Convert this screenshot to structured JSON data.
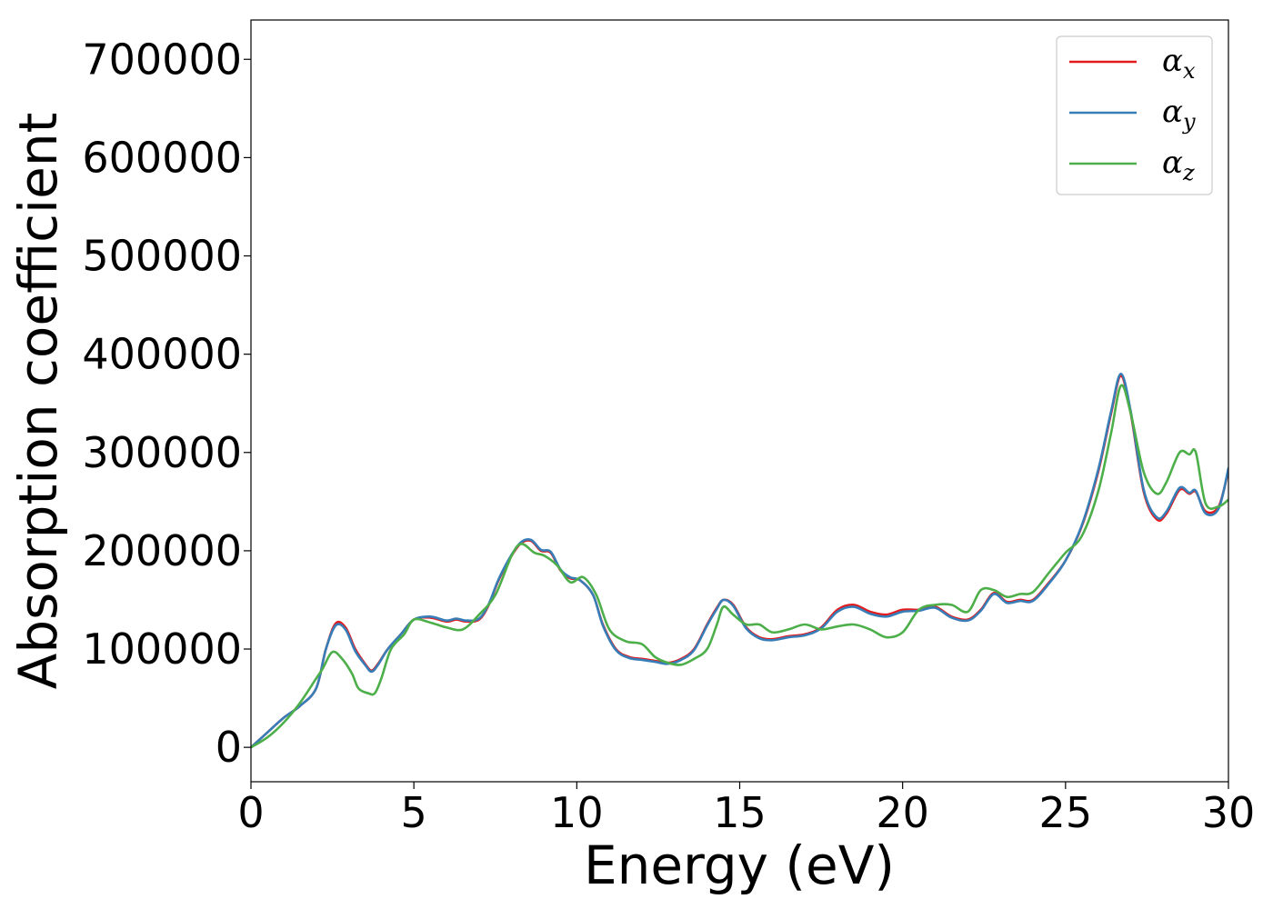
{
  "chart_data": {
    "type": "line",
    "title": "",
    "xlabel": "Energy (eV)",
    "ylabel": "Absorption coefficient",
    "xlim": [
      0,
      30
    ],
    "ylim": [
      -35000,
      740000
    ],
    "xticks": [
      0,
      5,
      10,
      15,
      20,
      25,
      30
    ],
    "xtick_labels": [
      "0",
      "5",
      "10",
      "15",
      "20",
      "25",
      "30"
    ],
    "yticks": [
      0,
      100000,
      200000,
      300000,
      400000,
      500000,
      600000,
      700000
    ],
    "ytick_labels": [
      "0",
      "100000",
      "200000",
      "300000",
      "400000",
      "500000",
      "600000",
      "700000"
    ],
    "grid": false,
    "legend_position": "top-right",
    "series": [
      {
        "name": "α_x",
        "legend_base": "α",
        "legend_sub": "x",
        "color": "#e41a1c",
        "x": [
          0,
          0.5,
          1,
          1.5,
          2,
          2.3,
          2.6,
          2.9,
          3.2,
          3.5,
          3.7,
          3.9,
          4.2,
          4.6,
          5,
          5.5,
          6,
          6.3,
          6.6,
          7,
          7.3,
          7.6,
          8,
          8.3,
          8.6,
          8.9,
          9.2,
          9.5,
          9.8,
          10.1,
          10.5,
          10.8,
          11.2,
          11.6,
          12,
          12.4,
          12.8,
          13.2,
          13.6,
          14,
          14.3,
          14.5,
          14.8,
          15.2,
          15.6,
          16,
          16.5,
          17,
          17.5,
          18,
          18.5,
          19,
          19.5,
          20,
          20.5,
          21,
          21.5,
          22,
          22.4,
          22.8,
          23.2,
          23.6,
          24,
          24.5,
          25,
          25.5,
          26,
          26.4,
          26.7,
          27,
          27.4,
          27.8,
          28.1,
          28.5,
          28.8,
          29,
          29.3,
          29.7,
          30
        ],
        "y": [
          0,
          15000,
          30000,
          42000,
          60000,
          100000,
          126000,
          122000,
          100000,
          85000,
          78000,
          85000,
          100000,
          115000,
          130000,
          132000,
          128000,
          130000,
          128000,
          130000,
          145000,
          170000,
          195000,
          208000,
          210000,
          200000,
          198000,
          180000,
          172000,
          170000,
          155000,
          125000,
          100000,
          92000,
          90000,
          88000,
          86000,
          90000,
          100000,
          125000,
          142000,
          150000,
          145000,
          122000,
          112000,
          110000,
          113000,
          115000,
          122000,
          140000,
          145000,
          138000,
          135000,
          140000,
          140000,
          143000,
          133000,
          130000,
          140000,
          157000,
          148000,
          150000,
          150000,
          168000,
          190000,
          225000,
          280000,
          340000,
          378000,
          340000,
          260000,
          232000,
          238000,
          262000,
          258000,
          260000,
          240000,
          245000,
          282000
        ]
      },
      {
        "name": "α_y",
        "legend_base": "α",
        "legend_sub": "y",
        "color": "#377eb8",
        "x": [
          0,
          0.5,
          1,
          1.5,
          2,
          2.3,
          2.6,
          2.9,
          3.2,
          3.5,
          3.7,
          3.9,
          4.2,
          4.6,
          5,
          5.5,
          6,
          6.3,
          6.6,
          7,
          7.3,
          7.6,
          8,
          8.3,
          8.6,
          8.9,
          9.2,
          9.5,
          9.8,
          10.1,
          10.5,
          10.8,
          11.2,
          11.6,
          12,
          12.4,
          12.8,
          13.2,
          13.6,
          14,
          14.3,
          14.5,
          14.8,
          15.2,
          15.6,
          16,
          16.5,
          17,
          17.5,
          18,
          18.5,
          19,
          19.5,
          20,
          20.5,
          21,
          21.5,
          22,
          22.4,
          22.8,
          23.2,
          23.6,
          24,
          24.5,
          25,
          25.5,
          26,
          26.4,
          26.7,
          27,
          27.4,
          27.8,
          28.1,
          28.5,
          28.8,
          29,
          29.3,
          29.7,
          30
        ],
        "y": [
          0,
          15000,
          30000,
          42000,
          60000,
          100000,
          124000,
          120000,
          98000,
          84000,
          77000,
          84000,
          100000,
          115000,
          130000,
          133000,
          129000,
          131000,
          129000,
          131000,
          146000,
          171000,
          196000,
          209000,
          211000,
          201000,
          199000,
          181000,
          173000,
          170000,
          155000,
          124000,
          99000,
          91000,
          89000,
          87000,
          85000,
          89000,
          99000,
          124000,
          141000,
          150000,
          144000,
          121000,
          111000,
          109000,
          112000,
          114000,
          121000,
          138000,
          143000,
          136000,
          133000,
          138000,
          139000,
          142000,
          132000,
          129000,
          139000,
          156000,
          147000,
          149000,
          149000,
          167000,
          190000,
          226000,
          282000,
          342000,
          380000,
          342000,
          262000,
          234000,
          240000,
          264000,
          259000,
          261000,
          238000,
          243000,
          284000
        ]
      },
      {
        "name": "α_z",
        "legend_base": "α",
        "legend_sub": "z",
        "color": "#4daf4a",
        "x": [
          0,
          0.5,
          1,
          1.5,
          2,
          2.2,
          2.5,
          2.8,
          3.1,
          3.3,
          3.6,
          3.8,
          4,
          4.3,
          4.7,
          5,
          5.5,
          6,
          6.5,
          7,
          7.5,
          8,
          8.3,
          8.7,
          9,
          9.4,
          9.8,
          10.2,
          10.6,
          11,
          11.5,
          12,
          12.4,
          12.8,
          13.2,
          13.6,
          14,
          14.3,
          14.5,
          14.8,
          15.2,
          15.6,
          16,
          16.5,
          17,
          17.5,
          18,
          18.5,
          19,
          19.5,
          20,
          20.5,
          21,
          21.5,
          22,
          22.4,
          22.8,
          23.2,
          23.6,
          24,
          24.5,
          25,
          25.5,
          26,
          26.4,
          26.7,
          27,
          27.4,
          27.8,
          28.1,
          28.5,
          28.8,
          29,
          29.3,
          29.7,
          30
        ],
        "y": [
          0,
          10000,
          25000,
          45000,
          70000,
          80000,
          97000,
          90000,
          75000,
          60000,
          55000,
          55000,
          70000,
          100000,
          115000,
          130000,
          127000,
          122000,
          120000,
          135000,
          155000,
          195000,
          207000,
          198000,
          195000,
          185000,
          168000,
          173000,
          155000,
          120000,
          108000,
          105000,
          92000,
          86000,
          84000,
          90000,
          100000,
          125000,
          143000,
          135000,
          125000,
          125000,
          117000,
          120000,
          125000,
          120000,
          123000,
          125000,
          120000,
          112000,
          117000,
          140000,
          145000,
          145000,
          138000,
          160000,
          160000,
          153000,
          156000,
          158000,
          178000,
          198000,
          215000,
          260000,
          320000,
          368000,
          340000,
          280000,
          258000,
          270000,
          300000,
          298000,
          300000,
          248000,
          245000,
          252000
        ]
      }
    ]
  }
}
